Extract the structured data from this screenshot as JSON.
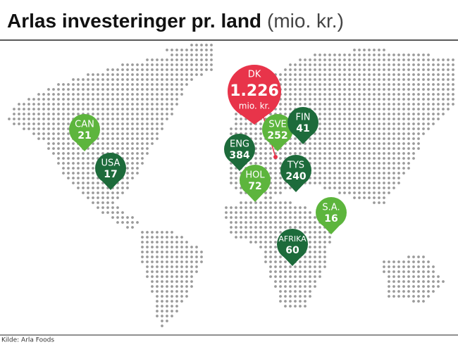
{
  "header": {
    "title": "Arlas investeringer pr. land",
    "unit": "(mio. kr.)"
  },
  "highlight": {
    "label": "DK",
    "value": "1.226",
    "unit": "mio. kr.",
    "color": "#e8344a"
  },
  "markers": [
    {
      "label": "CAN",
      "value": 21,
      "color": "#5db53d"
    },
    {
      "label": "USA",
      "value": 17,
      "color": "#1d6b3b"
    },
    {
      "label": "SVE",
      "value": 252,
      "color": "#5db53d"
    },
    {
      "label": "FIN",
      "value": 41,
      "color": "#1d6b3b"
    },
    {
      "label": "ENG",
      "value": 384,
      "color": "#1d6b3b"
    },
    {
      "label": "HOL",
      "value": 72,
      "color": "#5db53d"
    },
    {
      "label": "TYS",
      "value": 240,
      "color": "#1d6b3b"
    },
    {
      "label": "S.A.",
      "value": 16,
      "color": "#5db53d"
    },
    {
      "label": "AFRIKA",
      "value": 60,
      "color": "#1d6b3b"
    }
  ],
  "source": "Kilde: Arla Foods"
}
